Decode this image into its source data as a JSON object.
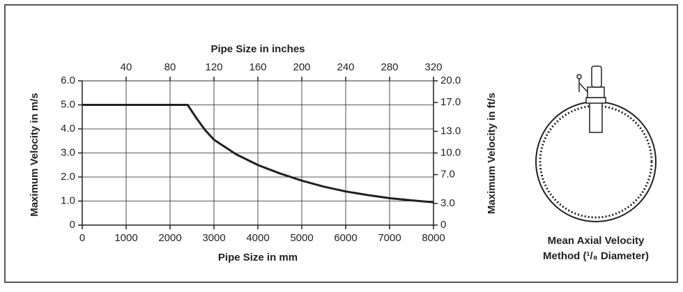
{
  "chart_data": {
    "type": "line",
    "title": "Pipe Size in inches",
    "x_label": "Pipe Size in mm",
    "y_label": "Maximum Velocity in m/s",
    "y2_label": "Maximum Velocity in ft/s",
    "caption": [
      "Mean Axial Velocity",
      "Method (¹/₈ Diameter)"
    ],
    "x": [
      0,
      2400,
      2600,
      2800,
      3000,
      3500,
      4000,
      4500,
      5000,
      5500,
      6000,
      6500,
      7000,
      7500,
      8000
    ],
    "series": [
      {
        "color": "#231f20",
        "values": [
          5,
          5,
          4.45,
          3.95,
          3.55,
          2.95,
          2.5,
          2.15,
          1.85,
          1.6,
          1.4,
          1.25,
          1.12,
          1.03,
          0.95
        ]
      }
    ],
    "xlim": [
      0,
      8000
    ],
    "xticks": [
      0,
      1000,
      2000,
      3000,
      4000,
      5000,
      6000,
      7000,
      8000
    ],
    "x2lim": [
      0,
      320
    ],
    "x2ticks": [
      40,
      80,
      120,
      160,
      200,
      240,
      280,
      320
    ],
    "ylim": [
      0,
      6
    ],
    "yticks": [
      0,
      {
        "value": 1,
        "label": "1.0"
      },
      {
        "value": 2,
        "label": "2.0"
      },
      {
        "value": 3,
        "label": "3.0"
      },
      {
        "value": 4,
        "label": "4.0"
      },
      {
        "value": 5,
        "label": "5.0"
      },
      {
        "value": 6,
        "label": "6.0"
      }
    ],
    "y2lim": [
      0,
      20
    ],
    "y2ticks": [
      0,
      {
        "value": 3,
        "label": "3.0"
      },
      {
        "value": 7,
        "label": "7.0"
      },
      {
        "value": 10,
        "label": "10.0"
      },
      {
        "value": 13,
        "label": "13.0"
      },
      {
        "value": 17,
        "label": "17.0"
      },
      {
        "value": 20,
        "label": "20.0"
      }
    ],
    "grid": true
  }
}
